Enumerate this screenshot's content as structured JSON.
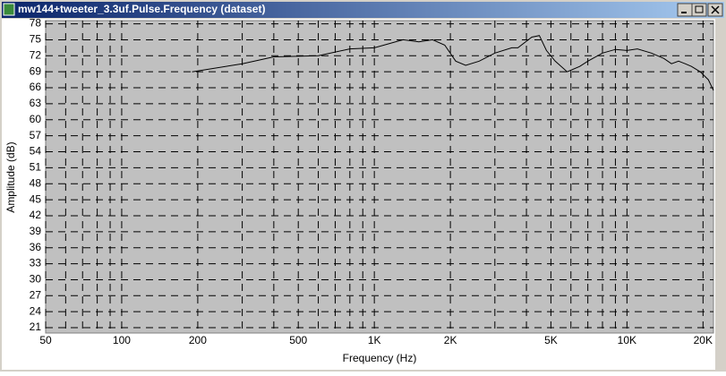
{
  "chart_data": {
    "type": "line",
    "title": "mw144+tweeter_3.3uf.Pulse.Frequency (dataset)",
    "x_label": "Frequency (Hz)",
    "y_label": "Amplitude (dB)",
    "xscale": "log",
    "xlim": [
      50,
      22000
    ],
    "ylim": [
      20,
      78.6
    ],
    "xticks": [
      50,
      100,
      200,
      500,
      {
        "value": 1000,
        "label": "1K"
      },
      {
        "value": 2000,
        "label": "2K"
      },
      {
        "value": 5000,
        "label": "5K"
      },
      {
        "value": 10000,
        "label": "10K"
      },
      {
        "value": 20000,
        "label": "20K"
      }
    ],
    "xminorticks": [
      60,
      70,
      80,
      90,
      300,
      400,
      600,
      700,
      800,
      900,
      3000,
      4000,
      6000,
      7000,
      8000,
      9000
    ],
    "yticks": [
      21,
      24,
      27,
      30,
      33,
      36,
      39,
      42,
      45,
      48,
      51,
      54,
      57,
      60,
      63,
      66,
      69,
      72,
      75,
      78
    ],
    "grid": true,
    "series": [
      {
        "color": "#000000",
        "x": [
          190,
          300,
          400,
          600,
          800,
          1000,
          1300,
          1500,
          1700,
          1900,
          2100,
          2300,
          2600,
          3000,
          3500,
          3700,
          4200,
          4500,
          4800,
          5200,
          5800,
          6500,
          7000,
          8000,
          9000,
          10000,
          11000,
          12500,
          14000,
          15000,
          16000,
          17000,
          18000,
          19500,
          21000,
          22000
        ],
        "values": [
          69,
          70.5,
          71.8,
          72,
          73.3,
          73.5,
          75,
          74.6,
          75,
          74,
          71,
          70.2,
          71,
          72.5,
          73.5,
          73.5,
          75.5,
          75.8,
          73,
          71,
          69,
          70,
          71,
          72.5,
          73.2,
          73,
          73.3,
          72.5,
          71.5,
          70.5,
          71,
          70.5,
          70,
          69,
          67.5,
          65.5
        ]
      }
    ]
  }
}
